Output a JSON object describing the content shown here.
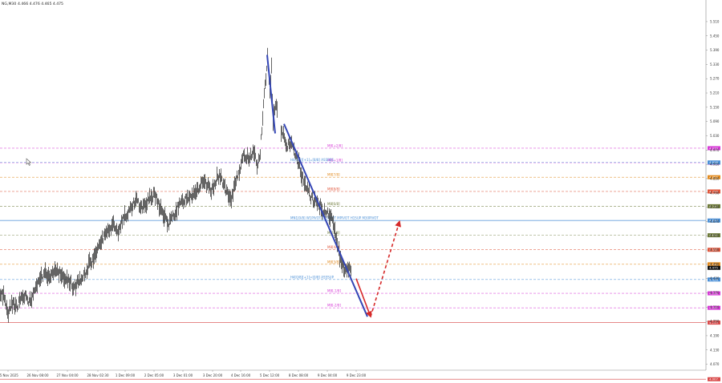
{
  "header": {
    "symbol": "NG,M30",
    "ohlc": "4.466 4.476 4.465 4.475"
  },
  "chart_data": {
    "type": "candlestick",
    "symbol": "NG",
    "timeframe": "M30",
    "ylim": [
      4.045,
      5.594
    ],
    "y_ticks": [
      5.51,
      5.45,
      5.39,
      5.33,
      5.27,
      5.21,
      5.15,
      5.09,
      5.03,
      4.97,
      4.91,
      4.85,
      4.79,
      4.73,
      4.67,
      4.61,
      4.55,
      4.49,
      4.43,
      4.37,
      4.31,
      4.25,
      4.19,
      4.13,
      4.07
    ],
    "x_ticks": [
      "25 Nov 2025",
      "26 Nov 08:00",
      "27 Nov 04:00",
      "28 Nov 02:30",
      "1 Dec 09:00",
      "2 Dec 05:00",
      "3 Dec 01:00",
      "3 Dec 20:00",
      "4 Dec 16:00",
      "5 Dec 12:00",
      "8 Dec 08:00",
      "9 Dec 04:00",
      "9 Dec 23:00"
    ],
    "price_path": [
      [
        0,
        4.37
      ],
      [
        5,
        4.35
      ],
      [
        9,
        4.28
      ],
      [
        14,
        4.33
      ],
      [
        20,
        4.31
      ],
      [
        26,
        4.36
      ],
      [
        32,
        4.35
      ],
      [
        38,
        4.33
      ],
      [
        44,
        4.39
      ],
      [
        50,
        4.43
      ],
      [
        56,
        4.45
      ],
      [
        62,
        4.43
      ],
      [
        70,
        4.46
      ],
      [
        78,
        4.44
      ],
      [
        86,
        4.42
      ],
      [
        92,
        4.39
      ],
      [
        98,
        4.42
      ],
      [
        104,
        4.44
      ],
      [
        112,
        4.5
      ],
      [
        118,
        4.52
      ],
      [
        124,
        4.59
      ],
      [
        132,
        4.62
      ],
      [
        140,
        4.66
      ],
      [
        146,
        4.62
      ],
      [
        152,
        4.68
      ],
      [
        160,
        4.71
      ],
      [
        168,
        4.76
      ],
      [
        176,
        4.73
      ],
      [
        184,
        4.76
      ],
      [
        192,
        4.78
      ],
      [
        198,
        4.74
      ],
      [
        204,
        4.69
      ],
      [
        210,
        4.66
      ],
      [
        216,
        4.7
      ],
      [
        222,
        4.73
      ],
      [
        228,
        4.76
      ],
      [
        236,
        4.78
      ],
      [
        244,
        4.8
      ],
      [
        252,
        4.83
      ],
      [
        258,
        4.82
      ],
      [
        264,
        4.8
      ],
      [
        270,
        4.86
      ],
      [
        276,
        4.85
      ],
      [
        282,
        4.79
      ],
      [
        288,
        4.75
      ],
      [
        292,
        4.83
      ],
      [
        298,
        4.89
      ],
      [
        304,
        4.95
      ],
      [
        310,
        4.94
      ],
      [
        316,
        4.97
      ],
      [
        320,
        4.9
      ],
      [
        324,
        4.96
      ],
      [
        328,
        5.16
      ],
      [
        331,
        5.28
      ],
      [
        333,
        5.37
      ],
      [
        336,
        5.2
      ],
      [
        338,
        5.31
      ],
      [
        340,
        5.08
      ],
      [
        342,
        5.15
      ],
      [
        344,
        5.17
      ],
      [
        346,
        5.14
      ]
    ],
    "price_path_2": [
      [
        350,
        5.05
      ],
      [
        354,
        5.02
      ],
      [
        358,
        4.99
      ],
      [
        362,
        5.0
      ],
      [
        366,
        4.97
      ],
      [
        370,
        4.93
      ],
      [
        374,
        4.89
      ],
      [
        378,
        4.84
      ],
      [
        382,
        4.82
      ],
      [
        386,
        4.78
      ],
      [
        390,
        4.76
      ],
      [
        394,
        4.75
      ],
      [
        398,
        4.74
      ],
      [
        402,
        4.72
      ],
      [
        406,
        4.71
      ],
      [
        410,
        4.7
      ],
      [
        414,
        4.67
      ],
      [
        418,
        4.62
      ],
      [
        421,
        4.56
      ],
      [
        424,
        4.51
      ],
      [
        427,
        4.48
      ],
      [
        430,
        4.46
      ],
      [
        433,
        4.47
      ],
      [
        436,
        4.47
      ],
      [
        438,
        4.475
      ]
    ],
    "levels": [
      {
        "label": "M8[+2/8]",
        "price": 4.978,
        "price_label": "4.978",
        "color": "#d63ad6",
        "style": "dashed"
      },
      {
        "label": "M8[+1/8]",
        "price": 4.917,
        "price_label": "4.917",
        "color": "#d63ad6",
        "style": "dashed"
      },
      {
        "label": "H4[8/8][+1]=[8/8] ASSRES",
        "price": 4.918,
        "price_label": "4.918",
        "color": "#4a8fd6",
        "style": "dashed"
      },
      {
        "label": "M8[7/8]",
        "price": 4.856,
        "price_label": "4.856",
        "color": "#e28a1e",
        "style": "dashed"
      },
      {
        "label": "M8[8/8]",
        "price": 4.796,
        "price_label": "4.796",
        "color": "#e0563c",
        "style": "dashed"
      },
      {
        "label": "M8[6/8]",
        "price": 4.734,
        "price_label": "4.734",
        "color": "#6e7a3a",
        "style": "dashed"
      },
      {
        "label": "MN1[0/8] W1PIVOT D1PIVOT MPIVOT H1SUP M30PIVOT",
        "price": 4.674,
        "price_label": "4.674",
        "color": "#4a8fd6",
        "style": "solid"
      },
      {
        "label": "M8[5/8]",
        "price": 4.612,
        "price_label": "4.612",
        "color": "#6e7a3a",
        "style": "dashed"
      },
      {
        "label": "M8[4/8]",
        "price": 4.551,
        "price_label": "4.551",
        "color": "#e0563c",
        "style": "dashed"
      },
      {
        "label": "M8[3/8]",
        "price": 4.49,
        "price_label": "4.490",
        "color": "#e28a1e",
        "style": "dashed"
      },
      {
        "label": "H4[0/8][+1]=[0/8] ASSSUP",
        "price": 4.426,
        "price_label": "4.426",
        "color": "#4a8fd6",
        "style": "dashed"
      },
      {
        "label": "M8[-1/8]",
        "price": 4.368,
        "price_label": "4.368",
        "color": "#d63ad6",
        "style": "dashed"
      },
      {
        "label": "M8[-2/8]",
        "price": 4.307,
        "price_label": "4.307",
        "color": "#d63ad6",
        "style": "dashed"
      },
      {
        "label": "",
        "price": 4.245,
        "price_label": "4.245",
        "color": "#d94a4a",
        "style": "solid"
      },
      {
        "label": "",
        "price": 4.007,
        "price_label": "4.007",
        "color": "#d94a4a",
        "style": "solid"
      }
    ],
    "current_price": "4.475",
    "annotations": [
      {
        "type": "trendline",
        "color": "#3345b5",
        "from": [
          333,
          5.37
        ],
        "to": [
          343,
          5.04
        ]
      },
      {
        "type": "trendline",
        "color": "#3345b5",
        "from": [
          354,
          5.08
        ],
        "to": [
          458,
          4.27
        ]
      },
      {
        "type": "arrow",
        "color": "#d62a2a",
        "style": "solid",
        "from": [
          444,
          4.43
        ],
        "to": [
          462,
          4.27
        ]
      },
      {
        "type": "arrow",
        "color": "#d62a2a",
        "style": "dashed",
        "from": [
          462,
          4.27
        ],
        "to": [
          498,
          4.67
        ]
      }
    ]
  }
}
